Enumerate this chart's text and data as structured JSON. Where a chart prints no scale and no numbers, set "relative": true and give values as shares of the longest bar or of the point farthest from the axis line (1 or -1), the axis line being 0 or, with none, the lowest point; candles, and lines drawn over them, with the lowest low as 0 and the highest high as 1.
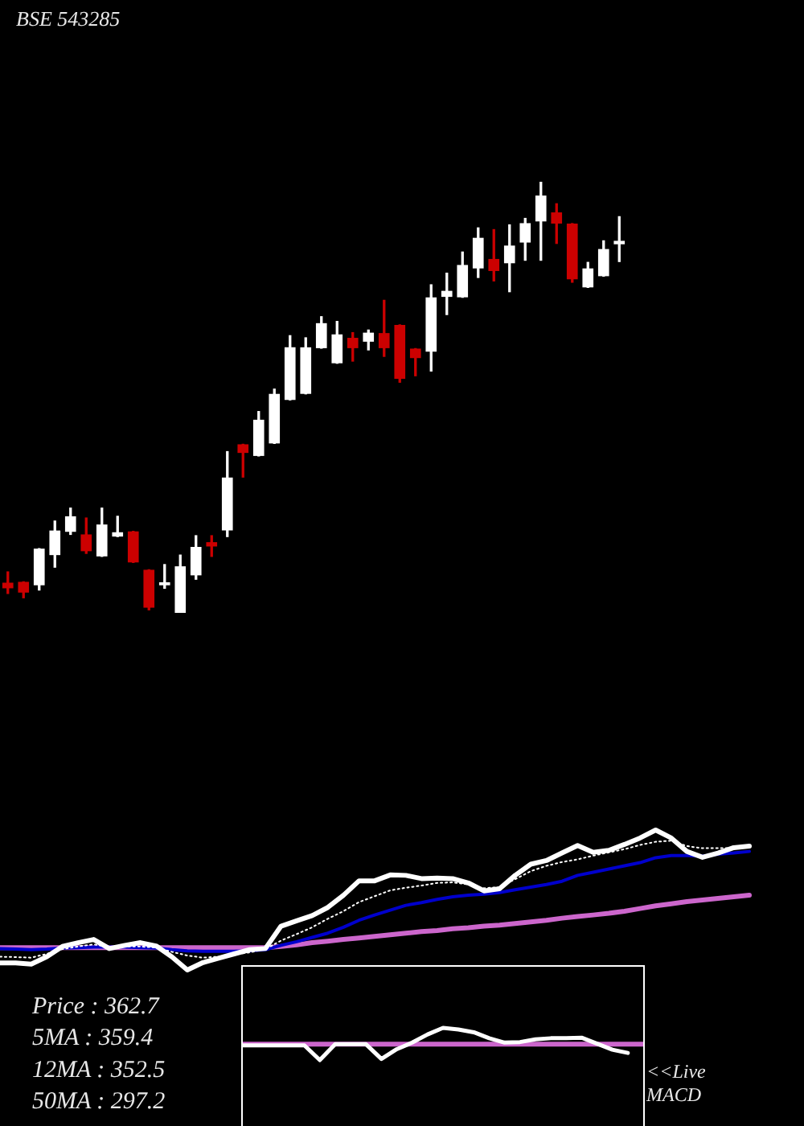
{
  "chart_data": [
    {
      "type": "candlestick",
      "title": "BSE 543285",
      "relative": true,
      "categories": [
        null,
        null,
        null,
        null,
        null,
        null,
        null,
        null,
        null,
        null,
        null,
        null,
        null,
        null,
        null,
        null,
        null,
        null,
        null,
        null,
        null,
        null,
        null,
        null,
        null,
        null,
        null,
        null,
        null,
        null,
        null,
        null,
        null,
        null,
        null,
        null,
        null,
        null,
        null,
        null
      ],
      "ohlc": [
        [
          0.07,
          0.095,
          0.045,
          0.057
        ],
        [
          0.072,
          0.072,
          0.035,
          0.047
        ],
        [
          0.064,
          0.149,
          0.053,
          0.149
        ],
        [
          0.134,
          0.213,
          0.106,
          0.191
        ],
        [
          0.188,
          0.243,
          0.182,
          0.224
        ],
        [
          0.182,
          0.22,
          0.138,
          0.143
        ],
        [
          0.131,
          0.243,
          0.131,
          0.205
        ],
        [
          0.177,
          0.224,
          0.177,
          0.187
        ],
        [
          0.189,
          0.189,
          0.117,
          0.117
        ],
        [
          0.1,
          0.1,
          0.007,
          0.012
        ],
        [
          0.064,
          0.112,
          0.057,
          0.071
        ],
        [
          0,
          0.134,
          0,
          0.108
        ],
        [
          0.087,
          0.179,
          0.078,
          0.153
        ],
        [
          0.164,
          0.179,
          0.131,
          0.154
        ],
        [
          0.191,
          0.374,
          0.177,
          0.314
        ],
        [
          0.391,
          0.391,
          0.315,
          0.371
        ],
        [
          0.364,
          0.467,
          0.364,
          0.448
        ],
        [
          0.393,
          0.519,
          0.393,
          0.508
        ],
        [
          0.494,
          0.643,
          0.494,
          0.616
        ],
        [
          0.508,
          0.638,
          0.508,
          0.616
        ],
        [
          0.614,
          0.687,
          0.614,
          0.672
        ],
        [
          0.579,
          0.676,
          0.579,
          0.646
        ],
        [
          0.638,
          0.65,
          0.584,
          0.614
        ],
        [
          0.629,
          0.656,
          0.61,
          0.65
        ],
        [
          0.649,
          0.725,
          0.595,
          0.614
        ],
        [
          0.668,
          0.668,
          0.535,
          0.543
        ],
        [
          0.613,
          0.613,
          0.55,
          0.591
        ],
        [
          0.606,
          0.761,
          0.561,
          0.732
        ],
        [
          0.733,
          0.788,
          0.692,
          0.747
        ],
        [
          0.732,
          0.837,
          0.732,
          0.807
        ],
        [
          0.799,
          0.893,
          0.778,
          0.87
        ],
        [
          0.821,
          0.889,
          0.77,
          0.793
        ],
        [
          0.811,
          0.9,
          0.745,
          0.852
        ],
        [
          0.859,
          0.915,
          0.818,
          0.904
        ],
        [
          0.908,
          1,
          0.818,
          0.968
        ],
        [
          0.929,
          0.949,
          0.857,
          0.903
        ],
        [
          0.903,
          0.903,
          0.767,
          0.774
        ],
        [
          0.755,
          0.813,
          0.755,
          0.799
        ],
        [
          0.781,
          0.863,
          0.781,
          0.844
        ],
        [
          0.855,
          0.919,
          0.815,
          0.863
        ]
      ],
      "colors": [
        "#cc0000",
        "#cc0000",
        "#ffffff",
        "#ffffff",
        "#ffffff",
        "#cc0000",
        "#ffffff",
        "#ffffff",
        "#cc0000",
        "#cc0000",
        "#ffffff",
        "#ffffff",
        "#ffffff",
        "#cc0000",
        "#ffffff",
        "#cc0000",
        "#ffffff",
        "#ffffff",
        "#ffffff",
        "#ffffff",
        "#ffffff",
        "#ffffff",
        "#cc0000",
        "#ffffff",
        "#cc0000",
        "#cc0000",
        "#cc0000",
        "#ffffff",
        "#ffffff",
        "#ffffff",
        "#ffffff",
        "#cc0000",
        "#ffffff",
        "#ffffff",
        "#ffffff",
        "#cc0000",
        "#cc0000",
        "#ffffff",
        "#ffffff",
        "#ffffff"
      ]
    },
    {
      "type": "line",
      "relative": true,
      "categories": [
        null,
        null,
        null,
        null,
        null,
        null,
        null,
        null,
        null,
        null,
        null,
        null,
        null,
        null,
        null,
        null,
        null,
        null,
        null,
        null,
        null,
        null,
        null,
        null,
        null,
        null,
        null,
        null,
        null,
        null,
        null,
        null,
        null,
        null,
        null,
        null,
        null,
        null,
        null,
        null,
        null,
        null,
        null,
        null,
        null,
        null,
        null,
        null,
        null
      ],
      "series": [
        {
          "color": "#ffffff",
          "values": [
            0.05,
            0.05,
            0.042,
            0.095,
            0.168,
            0.195,
            0.218,
            0.153,
            0.176,
            0.195,
            0.172,
            0.095,
            0,
            0.053,
            0.084,
            0.115,
            0.145,
            0.153,
            0.313,
            0.351,
            0.389,
            0.447,
            0.534,
            0.637,
            0.637,
            0.679,
            0.676,
            0.653,
            0.656,
            0.653,
            0.622,
            0.565,
            0.58,
            0.676,
            0.756,
            0.782,
            0.836,
            0.889,
            0.84,
            0.855,
            0.897,
            0.943,
            1,
            0.943,
            0.847,
            0.805,
            0.836,
            0.874,
            0.885
          ]
        },
        {
          "color": "#ffffff",
          "line_style": "dotted",
          "values": [
            0.095,
            0.092,
            0.088,
            0.115,
            0.149,
            0.168,
            0.183,
            0.164,
            0.168,
            0.168,
            0.16,
            0.13,
            0.103,
            0.088,
            0.095,
            0.111,
            0.126,
            0.149,
            0.21,
            0.256,
            0.305,
            0.366,
            0.42,
            0.485,
            0.527,
            0.569,
            0.588,
            0.603,
            0.622,
            0.626,
            0.611,
            0.584,
            0.592,
            0.649,
            0.706,
            0.744,
            0.771,
            0.79,
            0.817,
            0.84,
            0.863,
            0.893,
            0.916,
            0.924,
            0.885,
            0.87,
            0.87,
            0.87,
            0.874
          ]
        },
        {
          "color": "#0000cc",
          "values": [
            0.153,
            0.149,
            0.145,
            0.149,
            0.156,
            0.16,
            0.164,
            0.164,
            0.164,
            0.16,
            0.156,
            0.145,
            0.137,
            0.134,
            0.134,
            0.134,
            0.137,
            0.145,
            0.176,
            0.202,
            0.233,
            0.263,
            0.305,
            0.355,
            0.393,
            0.427,
            0.462,
            0.481,
            0.504,
            0.523,
            0.534,
            0.542,
            0.553,
            0.573,
            0.592,
            0.611,
            0.634,
            0.676,
            0.698,
            0.721,
            0.744,
            0.767,
            0.802,
            0.817,
            0.817,
            0.813,
            0.828,
            0.836,
            0.847
          ]
        },
        {
          "color": "#cc66cc",
          "values": [
            0.16,
            0.16,
            0.16,
            0.16,
            0.16,
            0.16,
            0.16,
            0.16,
            0.16,
            0.16,
            0.16,
            0.16,
            0.16,
            0.16,
            0.16,
            0.16,
            0.16,
            0.16,
            0.168,
            0.179,
            0.195,
            0.206,
            0.218,
            0.229,
            0.24,
            0.252,
            0.263,
            0.275,
            0.282,
            0.294,
            0.302,
            0.313,
            0.321,
            0.332,
            0.344,
            0.355,
            0.37,
            0.382,
            0.393,
            0.405,
            0.42,
            0.439,
            0.458,
            0.473,
            0.489,
            0.5,
            0.511,
            0.523,
            0.534
          ]
        }
      ],
      "annotations": [
        "Price : 362.7",
        "5MA : 359.4",
        "12MA : 352.5",
        "50MA : 297.2"
      ]
    },
    {
      "type": "line",
      "relative": true,
      "categories": [
        null,
        null,
        null,
        null,
        null,
        null,
        null,
        null,
        null,
        null,
        null,
        null,
        null,
        null,
        null,
        null,
        null,
        null,
        null,
        null,
        null,
        null,
        null,
        null,
        null,
        null,
        null
      ],
      "series": [
        {
          "color": "#ffffff",
          "values": [
            -0.067,
            -0.067,
            -0.067,
            -0.067,
            -0.067,
            -0.967,
            0,
            0,
            0,
            -0.9,
            -0.3,
            0.1,
            0.6,
            1,
            0.9,
            0.733,
            0.367,
            0.1,
            0.133,
            0.3,
            0.367,
            0.367,
            0.4,
            0.033,
            -0.333,
            -0.533,
            null
          ]
        }
      ],
      "ref_lines": [
        {
          "axis": "y",
          "value": 0,
          "color": "#cc66cc"
        }
      ],
      "annotations": [
        "<<Live MACD"
      ]
    }
  ]
}
